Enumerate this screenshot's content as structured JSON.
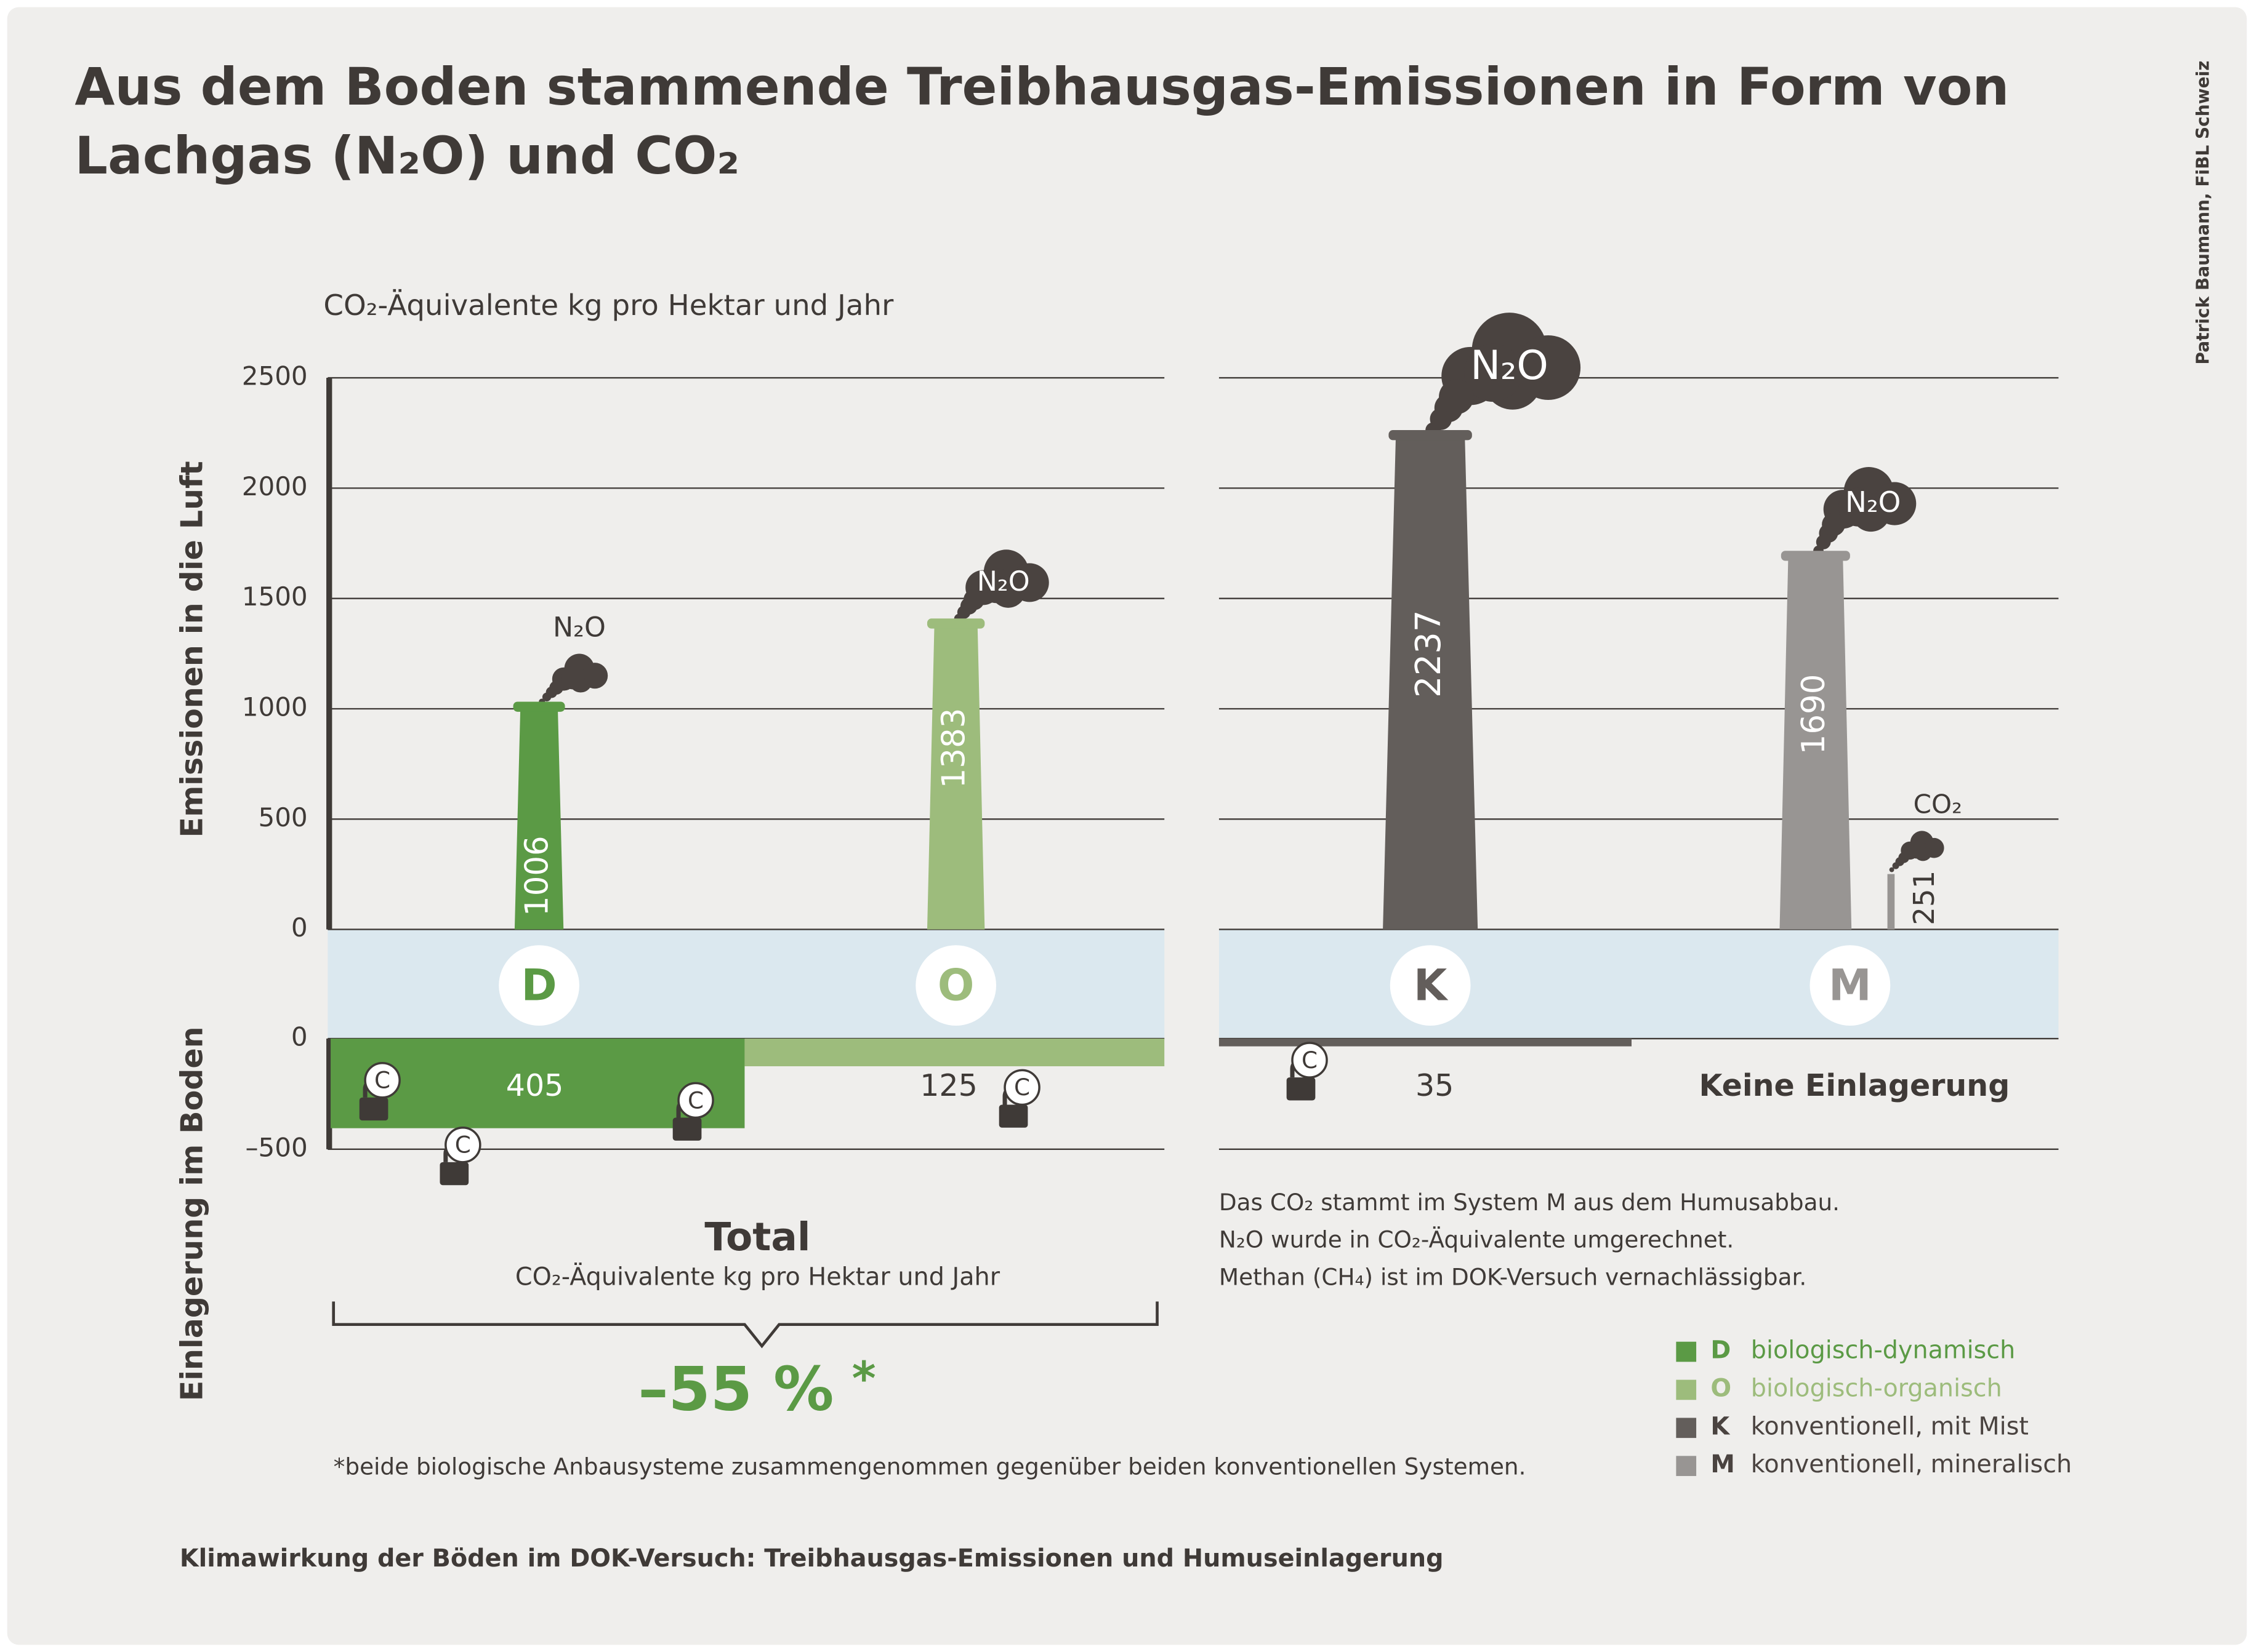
{
  "chart_data": {
    "type": "bar",
    "title": [
      "Aus dem Boden stammende Treibhausgas-Emissionen in Form von",
      "Lachgas (N₂O) und CO₂"
    ],
    "credit": "Patrick Baumann, FiBL Schweiz",
    "unit_label": "CO₂-Äquivalente  kg pro Hektar und Jahr",
    "y_label_top": "Emissionen in die Luft",
    "y_label_bottom": "Einlagerung im Boden",
    "categories": [
      "D",
      "O",
      "K",
      "M"
    ],
    "colors": [
      "#5b9a45",
      "#9dbc7c",
      "#635e5b",
      "#989593"
    ],
    "ylim": [
      0,
      2500
    ],
    "yticks": [
      0,
      500,
      1000,
      1500,
      2000,
      2500
    ],
    "storage_ylim": [
      -500,
      0
    ],
    "storage_yticks": [
      0,
      {
        "value": -500,
        "label": "–500"
      }
    ],
    "emissions": {
      "values": [
        1006,
        1383,
        2237,
        1690
      ],
      "gas_labels": [
        "N₂O",
        "N₂O",
        "N₂O",
        "N₂O"
      ]
    },
    "m_co2": {
      "label": "CO₂",
      "value": 251
    },
    "storage": {
      "values": [
        -405,
        -125,
        -35,
        0
      ],
      "value_labels": [
        "405",
        "125",
        "35",
        "Keine Einlagerung"
      ]
    },
    "carbon_symbol": "C",
    "total_title": "Total",
    "total_unit": "CO₂-Äquivalente kg pro Hektar und Jahr",
    "reduction": "–55 %",
    "reduction_mark": "*",
    "footnote": "*beide biologische Anbausysteme zusammengenommen gegenüber beiden konventionellen Systemen.",
    "notes": [
      "Das CO₂ stammt im System M aus dem Humusabbau.",
      "N₂O wurde in CO₂-Äquivalente umgerechnet.",
      "Methan (CH₄) ist im DOK-Versuch vernachlässigbar."
    ],
    "legend": [
      {
        "key": "D",
        "label": "biologisch-dynamisch"
      },
      {
        "key": "O",
        "label": "biologisch-organisch"
      },
      {
        "key": "K",
        "label": "konventionell, mit Mist"
      },
      {
        "key": "M",
        "label": "konventionell, mineralisch"
      }
    ],
    "caption": "Klimawirkung der Böden im DOK-Versuch: Treibhausgas-Emissionen und Humuseinlagerung"
  }
}
